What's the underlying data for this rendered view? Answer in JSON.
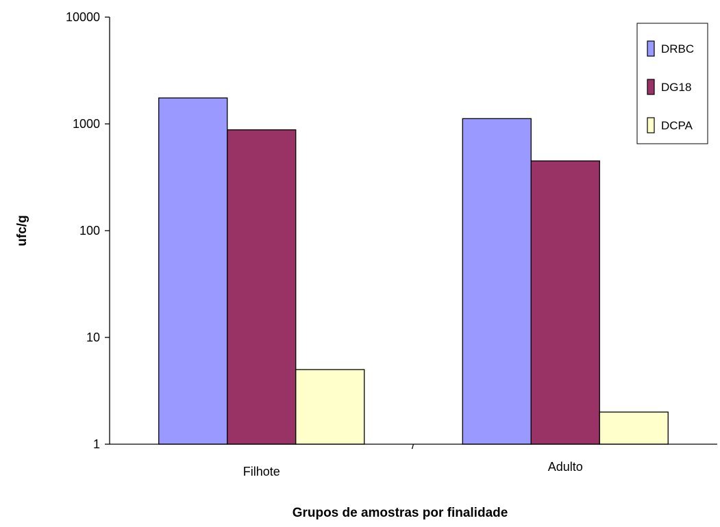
{
  "chart_data": {
    "type": "bar",
    "scale": "log",
    "title": "",
    "xlabel": "Grupos de amostras por finalidade",
    "ylabel": "ufc/g",
    "ylim": [
      1,
      10000
    ],
    "yticks": [
      "1",
      "10",
      "100",
      "1000",
      "10000"
    ],
    "categories": [
      "Filhote",
      "Adulto"
    ],
    "series": [
      {
        "name": "DRBC",
        "values": [
          1750,
          1120
        ],
        "color": "#9999ff"
      },
      {
        "name": "DG18",
        "values": [
          880,
          450
        ],
        "color": "#993366"
      },
      {
        "name": "DCPA",
        "values": [
          5,
          2
        ],
        "color": "#ffffcc"
      }
    ],
    "grid": false,
    "legend_position": "top-right"
  }
}
